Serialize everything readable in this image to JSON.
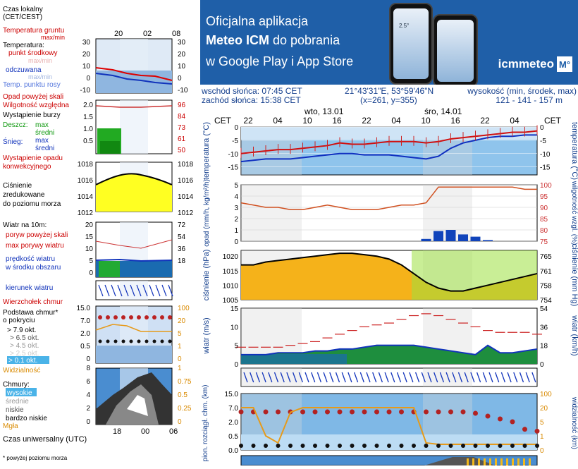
{
  "banner": {
    "line1": "Oficjalna aplikacja",
    "line2_bold": "Meteo ICM",
    "line2_rest": " do pobrania",
    "line3": "w Google Play i App Store",
    "logo_text": "icmmeteo",
    "logo_badge": "M°",
    "phone_temp": "2.5°"
  },
  "info": {
    "sunrise": "wschód słońca: 07:45 CET",
    "sunset": "zachód słońca: 15:38 CET",
    "coords": "21°43'31\"E, 53°59'46\"N",
    "grid": "(x=261, y=355)",
    "altitude_label": "wysokość (min, środek, max)",
    "altitude_values": "121 - 141 - 157 m"
  },
  "legend": {
    "time_local": "Czas lokalny\n(CET/CEST)",
    "time_ticks": [
      "20",
      "02",
      "08"
    ],
    "soil_temp": "Temperatura gruntu",
    "max_min": "max/min",
    "temperature": "Temperatura:",
    "mid_point": "punkt środkowy",
    "max_min_faint": "max/min",
    "feels_like": "odczuwana",
    "max_min_faint2": "max/min",
    "dew_point": "Temp. punktu rosy",
    "temp_axis_left": [
      "30",
      "20",
      "10",
      "0",
      "-10"
    ],
    "temp_axis_right": [
      "30",
      "20",
      "10",
      "0",
      "-10"
    ],
    "precip_above": "Opad powyżej skali",
    "humidity": "Wilgotność względna",
    "storm": "Wystąpienie burzy",
    "rain_label": "Deszcz:",
    "rain_max": "max",
    "rain_mid": "średni",
    "snow_label": "Śnieg:",
    "snow_max": "max",
    "snow_mid": "średni",
    "convective": "Wystąpienie opadu\nkonwekcyjnego",
    "precip_axis_left": [
      "2.0",
      "1.5",
      "1.0",
      "0.5"
    ],
    "precip_axis_right": [
      "96",
      "84",
      "73",
      "61",
      "50"
    ],
    "pressure": "Ciśnienie\nzredukowane\ndo poziomu morza",
    "pressure_axis": [
      "1018",
      "1016",
      "1014",
      "1012"
    ],
    "wind_10m": "Wiatr na 10m:",
    "gust_above": "poryw powyżej skali",
    "max_gust": "max porywy wiatru",
    "wind_speed": "prędkość wiatru\nw środku obszaru",
    "wind_axis_left": [
      "20",
      "15",
      "10",
      "5",
      "0"
    ],
    "wind_axis_right": [
      "72",
      "54",
      "36",
      "18"
    ],
    "wind_dir": "kierunek wiatru",
    "cloud_top": "Wierzchołek chmur",
    "cloud_base": "Podstawa chmur*\no pokryciu",
    "okt_79": "> 7.9 okt.",
    "okt_65": "> 6.5 okt.",
    "okt_45": "> 4.5 okt.",
    "okt_25": "> 2.5 okt.",
    "okt_01": "> 0.1 okt.",
    "base_axis_left": [
      "15.0",
      "7.0",
      "2.0",
      "0.5",
      "0"
    ],
    "base_axis_right": [
      "100",
      "20",
      "5",
      "1",
      "0"
    ],
    "visibility": "Widzialność",
    "clouds": "Chmury:",
    "high": "wysokie",
    "mid": "średnie",
    "low": "niskie",
    "very_low": "bardzo niskie",
    "fog": "Mgła",
    "cloud_axis_left": [
      "8",
      "6",
      "4",
      "2",
      "0"
    ],
    "cloud_axis_right": [
      "1",
      "0.75",
      "0.5",
      "0.25",
      "0"
    ],
    "utc_ticks": [
      "18",
      "00",
      "06"
    ],
    "utc_label": "Czas uniwersalny (UTC)",
    "footnote": "* powyżej poziomu morza"
  },
  "chart_data": [
    {
      "type": "line",
      "title": "",
      "ylabel_left": "temperatura (°C)",
      "ylabel_right": "temperatura (°C)",
      "top_label_left": "CET",
      "top_label_right": "CET",
      "days": [
        "wto, 13.01",
        "śro, 14.01"
      ],
      "x_ticks": [
        "22",
        "04",
        "10",
        "16",
        "22",
        "04",
        "10",
        "16",
        "22",
        "04"
      ],
      "ylim": [
        -18,
        0
      ],
      "yticks": [
        0,
        -5,
        -10,
        -15
      ],
      "series": [
        {
          "values": [
            -10,
            -9.5,
            -9,
            -8.5,
            -8.5,
            -8,
            -7.5,
            -7,
            -6,
            -6.5,
            -6.5,
            -6,
            -5.5,
            -5.5,
            -5.5,
            -6,
            -5.5,
            -4.5,
            -4,
            -3.5,
            -3,
            -2.5,
            -2,
            -2,
            -1.5
          ]
        },
        {
          "values": [
            -13,
            -12.5,
            -12,
            -12,
            -12,
            -11.5,
            -11,
            -10.5,
            -10,
            -10,
            -10.5,
            -10.5,
            -10.5,
            -11,
            -11.5,
            -12,
            -11,
            -8,
            -6,
            -5,
            -4,
            -3.5,
            -3.5,
            -3,
            -3
          ]
        }
      ]
    },
    {
      "type": "bar",
      "title": "",
      "ylabel_left": "opad (mm/h, kg/m²/h)",
      "ylabel_right": "wilgotność wzgl. (%)",
      "ylim": [
        0,
        5
      ],
      "yticks": [
        0,
        1,
        2,
        3,
        4,
        5
      ],
      "yticks_right": [
        75,
        80,
        85,
        90,
        95,
        100
      ],
      "humidity": [
        92,
        91,
        90,
        90,
        89,
        89,
        90,
        91,
        90,
        89,
        89,
        89,
        90,
        91,
        91,
        92,
        99,
        99,
        99,
        99,
        99,
        99,
        99,
        98,
        98
      ],
      "precip": [
        0,
        0,
        0,
        0,
        0,
        0,
        0,
        0,
        0,
        0,
        0,
        0,
        0,
        0,
        0,
        0.2,
        0.9,
        1.0,
        0.6,
        0.4,
        0.1,
        0,
        0,
        0,
        0
      ]
    },
    {
      "type": "line",
      "title": "",
      "ylabel_left": "ciśnienie (hPa)",
      "ylabel_right": "ciśnienie (mm Hg)",
      "ylim": [
        1005,
        1022
      ],
      "yticks": [
        1005,
        1010,
        1015,
        1020
      ],
      "yticks_right": [
        754,
        758,
        761,
        765
      ],
      "values": [
        1017,
        1017,
        1018,
        1018.5,
        1019,
        1019.5,
        1020,
        1020.5,
        1021,
        1021,
        1020.5,
        1020,
        1019,
        1017,
        1014,
        1011,
        1009,
        1008,
        1008,
        1009,
        1010,
        1011,
        1012,
        1013,
        1014
      ]
    },
    {
      "type": "line",
      "title": "",
      "ylabel_left": "wiatr (m/s)",
      "ylabel_right": "wiatr (km/h)",
      "ylim": [
        0,
        15
      ],
      "yticks": [
        0,
        5,
        10,
        15
      ],
      "yticks_right": [
        0,
        18,
        36,
        54
      ],
      "gust": [
        4.5,
        4.5,
        4.5,
        4.5,
        5,
        5.5,
        6,
        7,
        8,
        9,
        10,
        10.5,
        11,
        12,
        13,
        13.5,
        13,
        12,
        11,
        10,
        9,
        8.5,
        8.5,
        8.5,
        8
      ],
      "speed": [
        2.5,
        2.5,
        2.5,
        3,
        3,
        3,
        3.5,
        3.5,
        4,
        4,
        4.5,
        5,
        5,
        5,
        5,
        4.5,
        4,
        3.5,
        3,
        2.5,
        5,
        3,
        3,
        3.5,
        4
      ]
    },
    {
      "type": "line",
      "title": "",
      "ylabel_left": "pion. rozciągł. chm. (km)",
      "ylabel_right": "widzialność (km)",
      "yticks": [
        0,
        0.5,
        2.0,
        7.0,
        15.0
      ],
      "yticks_right": [
        0,
        1,
        5,
        20,
        100
      ],
      "cloud_top": [
        5.5,
        5.5,
        5.5,
        5.5,
        5.5,
        5.5,
        5.5,
        5.5,
        5.5,
        5.5,
        5.5,
        5.5,
        5.5,
        5.5,
        5.5,
        5.5,
        5.5,
        5.5,
        5.5,
        5,
        4,
        3,
        2,
        1.2,
        1
      ],
      "visibility": [
        20,
        20,
        1,
        0.5,
        15,
        20,
        20,
        20,
        20,
        20,
        20,
        20,
        20,
        20,
        20,
        0.5,
        0.4,
        0.4,
        0.4,
        0.4,
        0.4,
        0.4,
        0.4,
        0.4,
        0.4
      ]
    }
  ]
}
